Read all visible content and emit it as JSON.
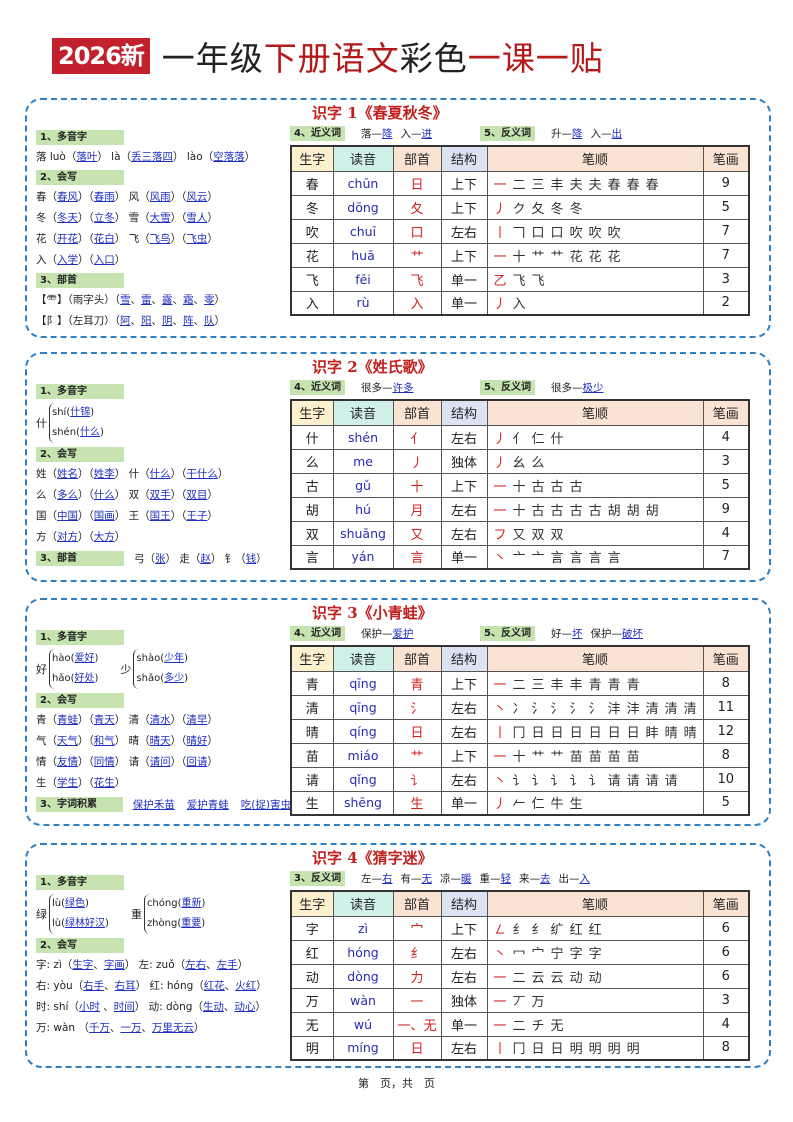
{
  "header": {
    "badge": "2026新",
    "title_black1": "一年级",
    "title_red1": "下册语文",
    "title_black2": "彩色",
    "title_red2": "一课一贴"
  },
  "table_headers": [
    "生字",
    "读音",
    "部首",
    "结构",
    "笔顺",
    "笔画"
  ],
  "header_colors": [
    "#fdf0cf",
    "#d2f0ea",
    "#fbe3d4",
    "#dbe3f3",
    "#fbe3d4",
    "#fbe3d4"
  ],
  "colors": {
    "border": "#2f7fc1",
    "title_red": "#c0201e",
    "link": "#1f2fc0",
    "label_bg": "#c6e3b0",
    "radical": "#d42020"
  },
  "lessons": [
    {
      "title": "识字 1《春夏秋冬》",
      "left": [
        {
          "label": "1、多音字",
          "type": "lines",
          "lines": [
            [
              "落 luò（",
              {
                "u": "落叶"
              },
              "） là（",
              {
                "u": "丢三落四"
              },
              "） lào（",
              {
                "u": "空落落"
              },
              "）"
            ]
          ]
        },
        {
          "label": "2、会写",
          "type": "lines",
          "lines": [
            [
              "春（",
              {
                "u": "春风"
              },
              "）（",
              {
                "u": "春雨"
              },
              "） 风（",
              {
                "u": "风雨"
              },
              "）（",
              {
                "u": "风云"
              },
              "）"
            ],
            [
              "冬（",
              {
                "u": "冬天"
              },
              "）（",
              {
                "u": "立冬"
              },
              "） 雪（",
              {
                "u": "大雪"
              },
              "）（",
              {
                "u": "雪人"
              },
              "）"
            ],
            [
              "花（",
              {
                "u": "开花"
              },
              "）（",
              {
                "u": "花白"
              },
              "） 飞（",
              {
                "u": "飞鸟"
              },
              "）（",
              {
                "u": "飞虫"
              },
              "）"
            ],
            [
              "入（",
              {
                "u": "入学"
              },
              "）（",
              {
                "u": "入口"
              },
              "）"
            ]
          ]
        },
        {
          "label": "3、部首",
          "type": "lines",
          "lines": [
            [
              "【⻗】（雨字头）（",
              {
                "u": "雪"
              },
              "、",
              {
                "u": "雷"
              },
              "、",
              {
                "u": "露"
              },
              "、",
              {
                "u": "霜"
              },
              "、",
              {
                "u": "零"
              },
              "）"
            ],
            [
              "【阝】（左耳刀）（",
              {
                "u": "阿"
              },
              "、",
              {
                "u": "阳"
              },
              "、",
              {
                "u": "阴"
              },
              "、",
              {
                "u": "阵"
              },
              "、",
              {
                "u": "队"
              },
              "）"
            ]
          ]
        }
      ],
      "synonyms": {
        "label": "4、近义词",
        "pairs": [
          [
            "落",
            "降"
          ],
          [
            "入",
            "进"
          ]
        ]
      },
      "antonyms": {
        "label": "5、反义词",
        "pairs": [
          [
            "升",
            "降"
          ],
          [
            "入",
            "出"
          ]
        ]
      },
      "rows": [
        {
          "char": "春",
          "pinyin": "chūn",
          "radical": "日",
          "structure": "上下",
          "strokes": [
            "一",
            "二",
            "三",
            "丰",
            "夫",
            "夫",
            "春",
            "春",
            "春"
          ],
          "count": "9"
        },
        {
          "char": "冬",
          "pinyin": "dōng",
          "radical": "夂",
          "structure": "上下",
          "strokes": [
            "丿",
            "ク",
            "夂",
            "冬",
            "冬"
          ],
          "count": "5"
        },
        {
          "char": "吹",
          "pinyin": "chuī",
          "radical": "口",
          "structure": "左右",
          "strokes": [
            "丨",
            "𠃍",
            "口",
            "口",
            "吹",
            "吹",
            "吹"
          ],
          "count": "7"
        },
        {
          "char": "花",
          "pinyin": "huā",
          "radical": "艹",
          "structure": "上下",
          "strokes": [
            "一",
            "十",
            "艹",
            "艹",
            "花",
            "花",
            "花"
          ],
          "count": "7"
        },
        {
          "char": "飞",
          "pinyin": "fēi",
          "radical": "飞",
          "structure": "单一",
          "strokes": [
            "乙",
            "飞",
            "飞"
          ],
          "count": "3"
        },
        {
          "char": "入",
          "pinyin": "rù",
          "radical": "入",
          "structure": "单一",
          "strokes": [
            "丿",
            "入"
          ],
          "count": "2"
        }
      ]
    },
    {
      "title": "识字 2《姓氏歌》",
      "left": [
        {
          "label": "1、多音字",
          "type": "poly",
          "groups": [
            {
              "char": "什",
              "readings": [
                {
                  "py": "shí",
                  "word": "什锦"
                },
                {
                  "py": "shén",
                  "word": "什么"
                }
              ]
            }
          ]
        },
        {
          "label": "2、会写",
          "type": "lines",
          "lines": [
            [
              "姓（",
              {
                "u": "姓名"
              },
              "）（",
              {
                "u": "姓李"
              },
              "） 什（",
              {
                "u": "什么"
              },
              "）（",
              {
                "u": "干什么"
              },
              "）"
            ],
            [
              "么（",
              {
                "u": "多么"
              },
              "）（",
              {
                "u": "什么"
              },
              "） 双（",
              {
                "u": "双手"
              },
              "）（",
              {
                "u": "双目"
              },
              "）"
            ],
            [
              "国（",
              {
                "u": "中国"
              },
              "）（",
              {
                "u": "国画"
              },
              "） 王（",
              {
                "u": "国王"
              },
              "）（",
              {
                "u": "王子"
              },
              "）"
            ],
            [
              "方（",
              {
                "u": "对方"
              },
              "）（",
              {
                "u": "大方"
              },
              "）"
            ]
          ]
        },
        {
          "label": "3、部首",
          "type": "inline",
          "line": [
            "弓（",
            {
              "u": "张"
            },
            "） 走（",
            {
              "u": "赵"
            },
            "） 钅（",
            {
              "u": "钱"
            },
            "）"
          ]
        }
      ],
      "synonyms": {
        "label": "4、近义词",
        "pairs": [
          [
            "很多",
            "许多"
          ]
        ]
      },
      "antonyms": {
        "label": "5、反义词",
        "pairs": [
          [
            "很多",
            "极少"
          ]
        ]
      },
      "rows": [
        {
          "char": "什",
          "pinyin": "shén",
          "radical": "亻",
          "structure": "左右",
          "strokes": [
            "丿",
            "亻",
            "仁",
            "什"
          ],
          "count": "4"
        },
        {
          "char": "么",
          "pinyin": "me",
          "radical": "丿",
          "structure": "独体",
          "strokes": [
            "丿",
            "幺",
            "么"
          ],
          "count": "3"
        },
        {
          "char": "古",
          "pinyin": "gǔ",
          "radical": "十",
          "structure": "上下",
          "strokes": [
            "一",
            "十",
            "古",
            "古",
            "古"
          ],
          "count": "5"
        },
        {
          "char": "胡",
          "pinyin": "hú",
          "radical": "月",
          "structure": "左右",
          "strokes": [
            "一",
            "十",
            "古",
            "古",
            "古",
            "古",
            "胡",
            "胡",
            "胡"
          ],
          "count": "9"
        },
        {
          "char": "双",
          "pinyin": "shuāng",
          "radical": "又",
          "structure": "左右",
          "strokes": [
            "フ",
            "又",
            "双",
            "双"
          ],
          "count": "4"
        },
        {
          "char": "言",
          "pinyin": "yán",
          "radical": "言",
          "structure": "单一",
          "strokes": [
            "丶",
            "亠",
            "亠",
            "言",
            "言",
            "言",
            "言"
          ],
          "count": "7"
        }
      ]
    },
    {
      "title": "识字 3《小青蛙》",
      "left": [
        {
          "label": "1、多音字",
          "type": "poly",
          "groups": [
            {
              "char": "好",
              "readings": [
                {
                  "py": "hào",
                  "word": "爱好"
                },
                {
                  "py": "hǎo",
                  "word": "好处"
                }
              ]
            },
            {
              "char": "少",
              "readings": [
                {
                  "py": "shào",
                  "word": "少年"
                },
                {
                  "py": "shǎo",
                  "word": "多少"
                }
              ]
            }
          ]
        },
        {
          "label": "2、会写",
          "type": "lines",
          "lines": [
            [
              "青（",
              {
                "u": "青蛙"
              },
              "）（",
              {
                "u": "青天"
              },
              "） 清（",
              {
                "u": "清水"
              },
              "）（",
              {
                "u": "清早"
              },
              "）"
            ],
            [
              "气（",
              {
                "u": "天气"
              },
              "）（",
              {
                "u": "和气"
              },
              "） 晴（",
              {
                "u": "晴天"
              },
              "）（",
              {
                "u": "晴好"
              },
              "）"
            ],
            [
              "情（",
              {
                "u": "友情"
              },
              "）（",
              {
                "u": "同情"
              },
              "） 请（",
              {
                "u": "请问"
              },
              "）（",
              {
                "u": "回请"
              },
              "）"
            ],
            [
              "生（",
              {
                "u": "学生"
              },
              "）（",
              {
                "u": "花生"
              },
              "）"
            ]
          ]
        },
        {
          "label": "3、字词积累",
          "type": "inline",
          "line": [
            {
              "u": "保护禾苗"
            },
            {
              "u": "爱护青蛙"
            },
            {
              "u": "吃(捉)害虫"
            }
          ]
        }
      ],
      "synonyms": {
        "label": "4、近义词",
        "pairs": [
          [
            "保护",
            "爱护"
          ]
        ]
      },
      "antonyms": {
        "label": "5、反义词",
        "pairs": [
          [
            "好",
            "坏"
          ],
          [
            "保护",
            "破坏"
          ]
        ]
      },
      "rows": [
        {
          "char": "青",
          "pinyin": "qīng",
          "radical": "青",
          "structure": "上下",
          "strokes": [
            "一",
            "二",
            "三",
            "丰",
            "丰",
            "青",
            "青",
            "青"
          ],
          "count": "8"
        },
        {
          "char": "清",
          "pinyin": "qīng",
          "radical": "氵",
          "structure": "左右",
          "strokes": [
            "丶",
            "冫",
            "氵",
            "氵",
            "氵",
            "氵",
            "沣",
            "沣",
            "清",
            "清",
            "清"
          ],
          "count": "11"
        },
        {
          "char": "晴",
          "pinyin": "qíng",
          "radical": "日",
          "structure": "左右",
          "strokes": [
            "丨",
            "冂",
            "日",
            "日",
            "日",
            "日",
            "日",
            "日",
            "盽",
            "晴",
            "晴",
            "晴"
          ],
          "count": "12"
        },
        {
          "char": "苗",
          "pinyin": "miáo",
          "radical": "艹",
          "structure": "上下",
          "strokes": [
            "一",
            "十",
            "艹",
            "艹",
            "苗",
            "苗",
            "苗",
            "苗"
          ],
          "count": "8"
        },
        {
          "char": "请",
          "pinyin": "qǐng",
          "radical": "讠",
          "structure": "左右",
          "strokes": [
            "丶",
            "讠",
            "讠",
            "讠",
            "讠",
            "讠",
            "请",
            "请",
            "请",
            "请"
          ],
          "count": "10"
        },
        {
          "char": "生",
          "pinyin": "shēng",
          "radical": "生",
          "structure": "单一",
          "strokes": [
            "丿",
            "𠂉",
            "仁",
            "牛",
            "生"
          ],
          "count": "5"
        }
      ]
    },
    {
      "title": "识字 4《猜字迷》",
      "left": [
        {
          "label": "1、多音字",
          "type": "poly",
          "groups": [
            {
              "char": "绿",
              "readings": [
                {
                  "py": "lù",
                  "word": "绿色"
                },
                {
                  "py": "lù",
                  "word": "绿林好汉"
                }
              ]
            },
            {
              "char": "重",
              "readings": [
                {
                  "py": "chóng",
                  "word": "重新"
                },
                {
                  "py": "zhòng",
                  "word": "重要"
                }
              ]
            }
          ]
        },
        {
          "label": "2、会写",
          "type": "lines",
          "lines": [
            [
              "字: zì（",
              {
                "u": "生字"
              },
              "、",
              {
                "u": "字画"
              },
              "） 左: zuǒ（",
              {
                "u": "左右"
              },
              "、",
              {
                "u": "左手"
              },
              "）"
            ],
            [
              "右: yòu（",
              {
                "u": "右手"
              },
              "、",
              {
                "u": "右耳"
              },
              "） 红: hóng（",
              {
                "u": "红花"
              },
              "、",
              {
                "u": "火红"
              },
              "）"
            ],
            [
              "时: shí（",
              {
                "u": "小时"
              },
              " 、",
              {
                "u": "时间"
              },
              "） 动: dòng（",
              {
                "u": "生动"
              },
              "、",
              {
                "u": "动心"
              },
              "）"
            ],
            [
              "万: wàn （",
              {
                "u": "千万"
              },
              "、",
              {
                "u": "一万"
              },
              "、",
              {
                "u": "万里无云"
              },
              "）"
            ]
          ]
        }
      ],
      "antonyms": {
        "label": "3、反义词",
        "pairs": [
          [
            "左",
            "右"
          ],
          [
            "有",
            "无"
          ],
          [
            "凉",
            "暖"
          ],
          [
            "重",
            "轻"
          ],
          [
            "来",
            "去"
          ],
          [
            "出",
            "入"
          ]
        ]
      },
      "rows": [
        {
          "char": "字",
          "pinyin": "zì",
          "radical": "宀",
          "structure": "上下",
          "strokes": [
            "㇜",
            "纟",
            "纟",
            "纩",
            "红",
            "红"
          ],
          "count": "6"
        },
        {
          "char": "红",
          "pinyin": "hóng",
          "radical": "纟",
          "structure": "左右",
          "strokes": [
            "丶",
            "冖",
            "宀",
            "宁",
            "字",
            "字"
          ],
          "count": "6"
        },
        {
          "char": "动",
          "pinyin": "dòng",
          "radical": "力",
          "structure": "左右",
          "strokes": [
            "一",
            "二",
            "云",
            "云",
            "动",
            "动"
          ],
          "count": "6"
        },
        {
          "char": "万",
          "pinyin": "wàn",
          "radical": "一",
          "structure": "独体",
          "strokes": [
            "一",
            "丆",
            "万"
          ],
          "count": "3"
        },
        {
          "char": "无",
          "pinyin": "wú",
          "radical": "一、无",
          "structure": "单一",
          "strokes": [
            "一",
            "二",
            "チ",
            "无"
          ],
          "count": "4"
        },
        {
          "char": "明",
          "pinyin": "míng",
          "radical": "日",
          "structure": "左右",
          "strokes": [
            "丨",
            "冂",
            "日",
            "日",
            "明",
            "明",
            "明",
            "明"
          ],
          "count": "8"
        }
      ]
    }
  ],
  "footer": "第　页，共　页"
}
